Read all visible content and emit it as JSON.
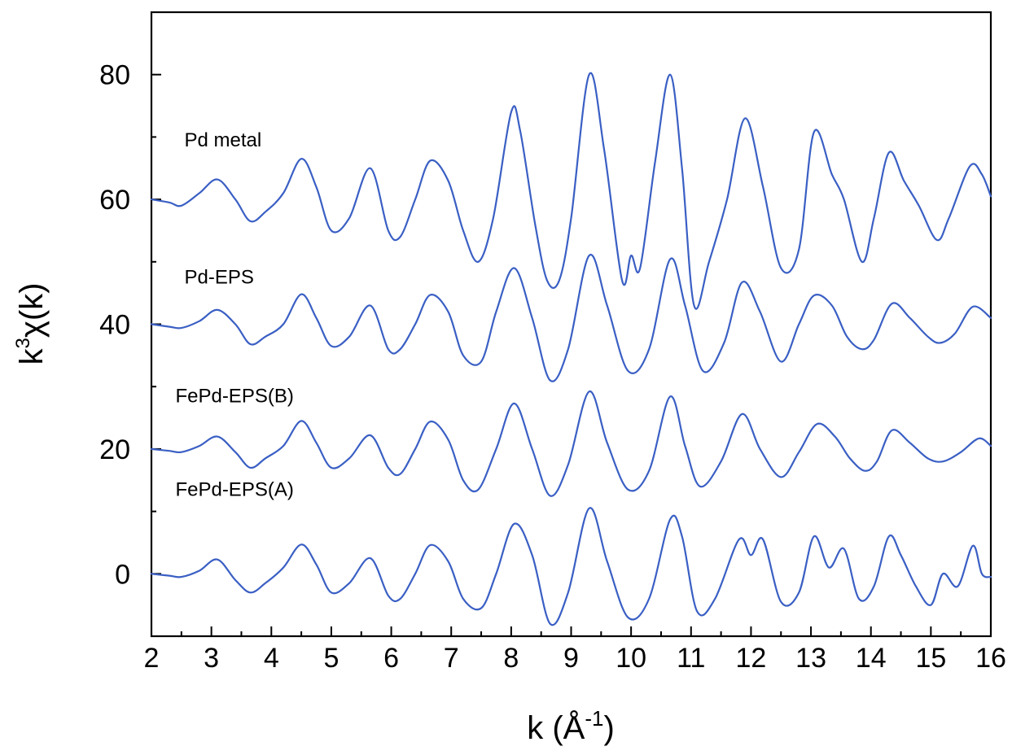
{
  "chart_data": {
    "type": "line",
    "xlabel": {
      "base": "k (Å",
      "sup": "-1",
      "tail": ")"
    },
    "ylabel": {
      "pre": "k",
      "sup": "3",
      "post": "χ(k)"
    },
    "xlim": [
      2,
      16
    ],
    "ylim": [
      -10,
      90
    ],
    "xticks": [
      2,
      3,
      4,
      5,
      6,
      7,
      8,
      9,
      10,
      11,
      12,
      13,
      14,
      15,
      16
    ],
    "yticks": [
      0,
      20,
      40,
      60,
      80
    ],
    "line_color": "#3a5fc4",
    "offsets_note_visible": false,
    "series": [
      {
        "name": "Pd metal",
        "x": [
          2.0,
          2.3,
          2.5,
          2.8,
          3.1,
          3.4,
          3.65,
          3.9,
          4.2,
          4.5,
          4.75,
          5.0,
          5.3,
          5.65,
          5.95,
          6.15,
          6.4,
          6.65,
          6.95,
          7.2,
          7.45,
          7.7,
          8.0,
          8.15,
          8.4,
          8.6,
          8.8,
          9.0,
          9.3,
          9.55,
          9.85,
          10.0,
          10.15,
          10.4,
          10.65,
          10.85,
          11.05,
          11.3,
          11.6,
          11.9,
          12.2,
          12.5,
          12.8,
          13.05,
          13.35,
          13.55,
          13.85,
          14.05,
          14.3,
          14.55,
          14.8,
          15.1,
          15.3,
          15.65,
          15.85,
          16.0
        ],
        "y": [
          60,
          59.5,
          59,
          61,
          63.2,
          60,
          56.5,
          58,
          61,
          66.5,
          62,
          55,
          57,
          65,
          55,
          54,
          60,
          66.2,
          63,
          55,
          50,
          57,
          74,
          71,
          56,
          47,
          47,
          57,
          80,
          68,
          47,
          51,
          49,
          66,
          80,
          65,
          43,
          50,
          60,
          73,
          62,
          49,
          52,
          70.8,
          64,
          60,
          50,
          57,
          67.5,
          63,
          59,
          53.5,
          57,
          65.3,
          64,
          60.5
        ]
      },
      {
        "name": "Pd-EPS",
        "x": [
          2.0,
          2.3,
          2.5,
          2.8,
          3.1,
          3.4,
          3.65,
          3.9,
          4.2,
          4.5,
          4.75,
          5.0,
          5.3,
          5.65,
          5.95,
          6.15,
          6.4,
          6.65,
          6.95,
          7.2,
          7.5,
          7.75,
          8.05,
          8.35,
          8.65,
          8.95,
          9.3,
          9.6,
          9.95,
          10.3,
          10.65,
          10.9,
          11.2,
          11.55,
          11.85,
          12.15,
          12.5,
          12.8,
          13.05,
          13.35,
          13.6,
          13.85,
          14.05,
          14.35,
          14.65,
          14.95,
          15.15,
          15.4,
          15.7,
          16.0
        ],
        "y": [
          40,
          39.6,
          39.4,
          40.5,
          42.3,
          40,
          36.8,
          38,
          40,
          44.8,
          41,
          36.5,
          38,
          43,
          36,
          36,
          40,
          44.7,
          42,
          35,
          34,
          42,
          49,
          41,
          31,
          36,
          51,
          43,
          32.5,
          36,
          50.4,
          43,
          32.5,
          37,
          46.7,
          42,
          34,
          40,
          44.6,
          43,
          38,
          36,
          37.5,
          43.3,
          41,
          38,
          37,
          38.5,
          42.8,
          41
        ]
      },
      {
        "name": "FePd-EPS(B)",
        "x": [
          2.0,
          2.3,
          2.5,
          2.8,
          3.1,
          3.4,
          3.65,
          3.9,
          4.2,
          4.5,
          4.75,
          5.0,
          5.3,
          5.65,
          5.95,
          6.15,
          6.4,
          6.65,
          6.95,
          7.2,
          7.45,
          7.75,
          8.05,
          8.35,
          8.65,
          8.95,
          9.3,
          9.6,
          9.95,
          10.3,
          10.65,
          10.9,
          11.15,
          11.5,
          11.85,
          12.15,
          12.5,
          12.8,
          13.1,
          13.4,
          13.65,
          13.9,
          14.1,
          14.35,
          14.65,
          14.95,
          15.2,
          15.5,
          15.8,
          16.0
        ],
        "y": [
          20,
          19.7,
          19.5,
          20.5,
          22,
          19.5,
          17,
          18.5,
          20.5,
          24.5,
          21,
          17,
          18.5,
          22.2,
          17,
          16,
          20,
          24.4,
          21.5,
          15,
          13.5,
          20,
          27.3,
          20,
          12.5,
          17.5,
          29.2,
          21,
          13.5,
          16.5,
          28.4,
          20.5,
          14,
          18,
          25.6,
          20,
          15.5,
          19.5,
          24,
          22,
          18.5,
          16.5,
          18,
          23,
          21,
          18.5,
          18,
          19.5,
          21.7,
          20.5
        ]
      },
      {
        "name": "FePd-EPS(A)",
        "x": [
          2.0,
          2.3,
          2.5,
          2.8,
          3.1,
          3.4,
          3.65,
          3.9,
          4.2,
          4.5,
          4.75,
          5.0,
          5.3,
          5.65,
          5.95,
          6.15,
          6.4,
          6.65,
          6.95,
          7.2,
          7.5,
          7.75,
          8.05,
          8.35,
          8.65,
          8.95,
          9.3,
          9.6,
          9.95,
          10.3,
          10.65,
          10.85,
          11.1,
          11.4,
          11.8,
          12.0,
          12.2,
          12.5,
          12.8,
          13.05,
          13.3,
          13.55,
          13.8,
          14.05,
          14.3,
          14.5,
          14.75,
          15.0,
          15.2,
          15.45,
          15.7,
          15.85,
          16.0
        ],
        "y": [
          0,
          -0.3,
          -0.5,
          0.5,
          2.3,
          -1,
          -3,
          -1.5,
          1,
          4.7,
          1.5,
          -3,
          -1.5,
          2.5,
          -3.5,
          -4,
          0,
          4.6,
          2,
          -4,
          -5.5,
          0,
          8,
          3,
          -8,
          -3,
          10.5,
          2,
          -7,
          -4,
          8.7,
          6,
          -6,
          -4,
          5.5,
          3,
          5.5,
          -4.5,
          -3,
          6,
          1,
          4,
          -4,
          -2,
          6,
          3,
          -2,
          -5,
          0,
          -2,
          4.5,
          0,
          -0.5
        ]
      }
    ],
    "series_labels": [
      {
        "text": "Pd metal",
        "x": 2.55,
        "y": 68.5
      },
      {
        "text": "Pd-EPS",
        "x": 2.55,
        "y": 46.5
      },
      {
        "text": "FePd-EPS(B)",
        "x": 2.4,
        "y": 27.5
      },
      {
        "text": "FePd-EPS(A)",
        "x": 2.4,
        "y": 12.5
      }
    ]
  }
}
